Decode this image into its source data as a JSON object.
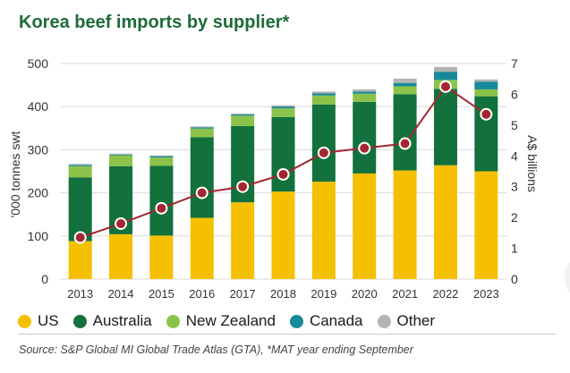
{
  "title": "Korea beef imports by supplier*",
  "chart_data": {
    "type": "bar",
    "stacked": true,
    "categories": [
      "2013",
      "2014",
      "2015",
      "2016",
      "2017",
      "2018",
      "2019",
      "2020",
      "2021",
      "2022",
      "2023"
    ],
    "series": [
      {
        "name": "US",
        "color": "#f5c000",
        "values": [
          88,
          104,
          101,
          142,
          178,
          203,
          226,
          245,
          252,
          264,
          250
        ]
      },
      {
        "name": "Australia",
        "color": "#12713c",
        "values": [
          148,
          158,
          162,
          187,
          177,
          173,
          179,
          166,
          177,
          177,
          174
        ]
      },
      {
        "name": "New Zealand",
        "color": "#8bc34a",
        "values": [
          26,
          25,
          19,
          20,
          24,
          20,
          21,
          19,
          18,
          21,
          16
        ]
      },
      {
        "name": "Canada",
        "color": "#168a99",
        "values": [
          3,
          2,
          3,
          3,
          3,
          4,
          5,
          5,
          8,
          19,
          18
        ]
      },
      {
        "name": "Other",
        "color": "#b3b3b3",
        "values": [
          2,
          2,
          2,
          2,
          2,
          3,
          4,
          5,
          10,
          11,
          5
        ]
      }
    ],
    "line": {
      "name": "A$ billions",
      "color": "#a32632",
      "values": [
        1.35,
        1.8,
        2.3,
        2.8,
        3.0,
        3.4,
        4.1,
        4.25,
        4.4,
        6.25,
        5.35
      ]
    },
    "ylabel": "'000 tonnes swt",
    "ylim": [
      0,
      500
    ],
    "yticks": [
      "0",
      "100",
      "200",
      "300",
      "400",
      "500"
    ],
    "y2label": "A$ billions",
    "y2lim": [
      0,
      7
    ],
    "y2ticks": [
      "0",
      "1",
      "2",
      "3",
      "4",
      "5",
      "6",
      "7"
    ]
  },
  "source": "Source: S&P Global MI Global Trade Atlas (GTA), *MAT year ending September"
}
